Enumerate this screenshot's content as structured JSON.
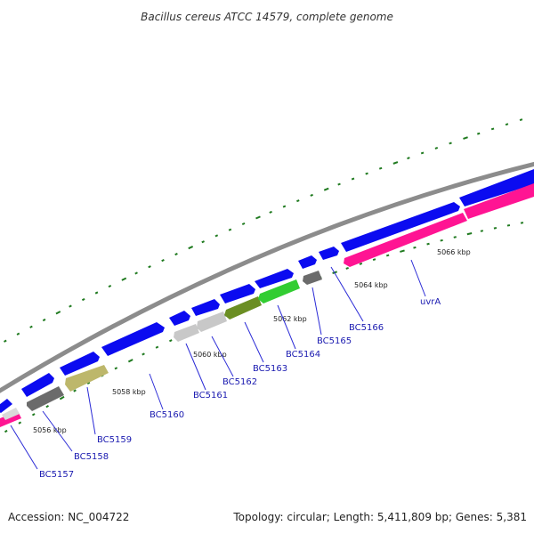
{
  "title": "Bacillus cereus ATCC 14579, complete genome",
  "footer": {
    "accession": "Accession: NC_004722",
    "summary": "Topology: circular; Length: 5,411,809 bp; Genes: 5,381"
  },
  "colors": {
    "backbone": "#8c8c8c",
    "forward_cds": "#0b0bf0",
    "reverse_pink": "#ff1493",
    "gray": "#6b6b6b",
    "light_gray": "#c8c8c8",
    "olive": "#bdb76b",
    "dark_olive": "#6b8e23",
    "green": "#32cd32",
    "tick": "#1f7a1f",
    "label": "#1a1ab0"
  },
  "scale_labels": [
    "5056 kbp",
    "5058 kbp",
    "5060 kbp",
    "5062 kbp",
    "5064 kbp",
    "5066 kbp"
  ],
  "gene_labels": [
    "BC5157",
    "BC5158",
    "BC5159",
    "BC5160",
    "BC5161",
    "BC5162",
    "BC5163",
    "BC5164",
    "BC5165",
    "BC5166",
    "uvrA"
  ]
}
